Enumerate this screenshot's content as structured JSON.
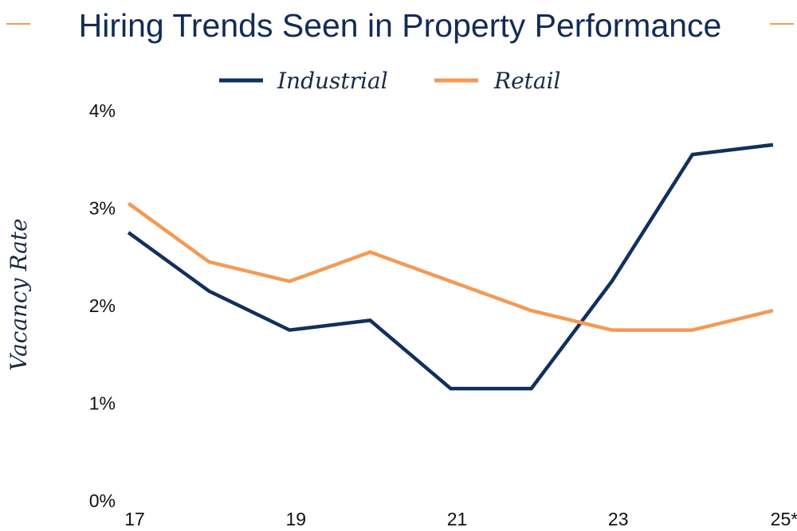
{
  "colors": {
    "industrial": "#11305c",
    "retail": "#f39a55",
    "title": "#132c55",
    "accent_dash": "#f39a55"
  },
  "chart_data": {
    "type": "line",
    "title": "Hiring Trends Seen in Property Performance",
    "xlabel": "",
    "ylabel": "Vacancy Rate",
    "x": [
      2017,
      2018,
      2019,
      2020,
      2021,
      2022,
      2023,
      2024,
      2025
    ],
    "xtick_values": [
      2017,
      2019,
      2021,
      2023,
      2025
    ],
    "xtick_labels": [
      "17",
      "19",
      "21",
      "23",
      "25*"
    ],
    "xlim": [
      2016.95,
      2025.05
    ],
    "ylim": [
      0,
      4
    ],
    "ytick_values": [
      4,
      3,
      2,
      1,
      0
    ],
    "ytick_labels": [
      "4%",
      "3%",
      "2%",
      "1%",
      "0%"
    ],
    "grid": false,
    "legend_position": "top-center",
    "series": [
      {
        "name": "Industrial",
        "color": "#11305c",
        "values": [
          2.75,
          2.15,
          1.75,
          1.85,
          1.15,
          1.15,
          2.25,
          3.55,
          3.65
        ]
      },
      {
        "name": "Retail",
        "color": "#f39a55",
        "values": [
          3.05,
          2.45,
          2.25,
          2.55,
          2.25,
          1.95,
          1.75,
          1.75,
          1.95
        ]
      }
    ]
  }
}
